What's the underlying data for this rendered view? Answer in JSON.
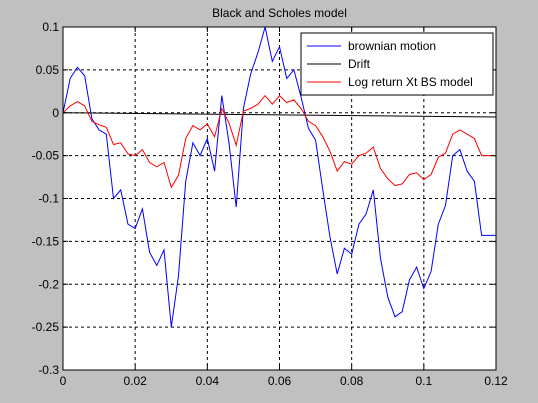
{
  "chart_data": {
    "type": "line",
    "title": "Black and Scholes model",
    "xlabel": "",
    "ylabel": "",
    "xlim": [
      0,
      0.12
    ],
    "ylim": [
      -0.3,
      0.1
    ],
    "xticks": [
      0,
      0.02,
      0.04,
      0.06,
      0.08,
      0.1,
      0.12
    ],
    "xtick_labels": [
      "0",
      "0.02",
      "0.04",
      "0.06",
      "0.08",
      "0.1",
      "0.12"
    ],
    "yticks": [
      -0.3,
      -0.25,
      -0.2,
      -0.15,
      -0.1,
      -0.05,
      0,
      0.05,
      0.1
    ],
    "ytick_labels": [
      "-0.3",
      "-0.25",
      "-0.2",
      "-0.15",
      "-0.1",
      "-0.05",
      "0",
      "0.05",
      "0.1"
    ],
    "grid": true,
    "legend_position": "top-right",
    "series": [
      {
        "name": "brownian motion",
        "color": "#0000ff",
        "x": [
          0,
          0.002,
          0.004,
          0.006,
          0.008,
          0.01,
          0.012,
          0.014,
          0.016,
          0.018,
          0.02,
          0.022,
          0.024,
          0.026,
          0.028,
          0.03,
          0.032,
          0.034,
          0.036,
          0.038,
          0.04,
          0.042,
          0.044,
          0.046,
          0.048,
          0.05,
          0.052,
          0.054,
          0.056,
          0.058,
          0.06,
          0.062,
          0.064,
          0.066,
          0.068,
          0.07,
          0.072,
          0.074,
          0.076,
          0.078,
          0.08,
          0.082,
          0.084,
          0.086,
          0.088,
          0.09,
          0.092,
          0.094,
          0.096,
          0.098,
          0.1,
          0.102,
          0.104,
          0.106,
          0.108,
          0.11,
          0.112,
          0.114,
          0.116,
          0.118,
          0.12
        ],
        "values": [
          0,
          0.04,
          0.053,
          0.043,
          -0.007,
          -0.02,
          -0.025,
          -0.1,
          -0.09,
          -0.13,
          -0.135,
          -0.112,
          -0.163,
          -0.178,
          -0.16,
          -0.25,
          -0.19,
          -0.08,
          -0.035,
          -0.05,
          -0.03,
          -0.068,
          0.02,
          -0.035,
          -0.11,
          0.005,
          0.045,
          0.07,
          0.1,
          0.06,
          0.077,
          0.04,
          0.05,
          0.018,
          -0.018,
          -0.032,
          -0.09,
          -0.145,
          -0.188,
          -0.158,
          -0.165,
          -0.13,
          -0.118,
          -0.09,
          -0.17,
          -0.215,
          -0.238,
          -0.232,
          -0.195,
          -0.18,
          -0.205,
          -0.185,
          -0.13,
          -0.108,
          -0.05,
          -0.043,
          -0.068,
          -0.08,
          -0.143,
          -0.143,
          -0.143
        ]
      },
      {
        "name": "Drift",
        "color": "#000000",
        "x": [
          0,
          0.12
        ],
        "values": [
          0,
          -0.005
        ]
      },
      {
        "name": "Log return Xt BS model",
        "color": "#ff0000",
        "x": [
          0,
          0.002,
          0.004,
          0.006,
          0.008,
          0.01,
          0.012,
          0.014,
          0.016,
          0.018,
          0.02,
          0.022,
          0.024,
          0.026,
          0.028,
          0.03,
          0.032,
          0.034,
          0.036,
          0.038,
          0.04,
          0.042,
          0.044,
          0.046,
          0.048,
          0.05,
          0.052,
          0.054,
          0.056,
          0.058,
          0.06,
          0.062,
          0.064,
          0.066,
          0.068,
          0.07,
          0.072,
          0.074,
          0.076,
          0.078,
          0.08,
          0.082,
          0.084,
          0.086,
          0.088,
          0.09,
          0.092,
          0.094,
          0.096,
          0.098,
          0.1,
          0.102,
          0.104,
          0.106,
          0.108,
          0.11,
          0.112,
          0.114,
          0.116,
          0.118,
          0.12
        ],
        "values": [
          0,
          0.008,
          0.013,
          0.008,
          -0.01,
          -0.014,
          -0.017,
          -0.037,
          -0.035,
          -0.048,
          -0.05,
          -0.043,
          -0.058,
          -0.063,
          -0.058,
          -0.087,
          -0.073,
          -0.03,
          -0.015,
          -0.02,
          -0.013,
          -0.028,
          0.005,
          -0.012,
          -0.038,
          0.002,
          0.005,
          0.01,
          0.02,
          0.01,
          0.02,
          0.012,
          0.015,
          0.005,
          -0.01,
          -0.015,
          -0.028,
          -0.045,
          -0.068,
          -0.057,
          -0.06,
          -0.05,
          -0.047,
          -0.04,
          -0.065,
          -0.077,
          -0.085,
          -0.083,
          -0.072,
          -0.07,
          -0.078,
          -0.072,
          -0.052,
          -0.047,
          -0.025,
          -0.02,
          -0.025,
          -0.03,
          -0.05,
          -0.05,
          -0.05
        ]
      }
    ]
  }
}
